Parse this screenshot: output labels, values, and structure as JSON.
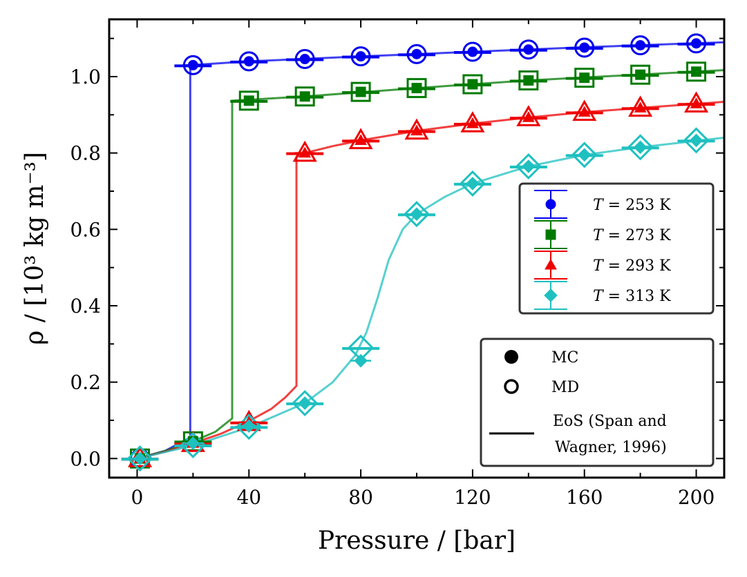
{
  "chart_data": {
    "type": "scatter",
    "xlabel": "Pressure / [bar]",
    "ylabel": "ρ / [10³ kg m⁻³]",
    "xlim": [
      -10,
      210
    ],
    "ylim": [
      -0.05,
      1.15
    ],
    "x_ticks": [
      0,
      40,
      80,
      120,
      160,
      200
    ],
    "x_tick_labels": [
      "0",
      "40",
      "80",
      "120",
      "160",
      "200"
    ],
    "y_ticks": [
      0.0,
      0.2,
      0.4,
      0.6,
      0.8,
      1.0
    ],
    "y_tick_labels": [
      "0.0",
      "0.2",
      "0.4",
      "0.6",
      "0.8",
      "1.0"
    ],
    "series": [
      {
        "name": "T = 253 K",
        "label_var": "T",
        "label_rest": " = 253 K",
        "color": "#0000ee",
        "marker": "circle",
        "x": [
          1,
          20,
          40,
          60,
          80,
          100,
          120,
          140,
          160,
          180,
          200
        ],
        "mc": [
          0.0,
          1.03,
          1.04,
          1.046,
          1.053,
          1.059,
          1.065,
          1.071,
          1.076,
          1.082,
          1.087
        ],
        "md": [
          0.0,
          1.03,
          1.04,
          1.046,
          1.053,
          1.059,
          1.065,
          1.071,
          1.076,
          1.082,
          1.087
        ],
        "eos": [
          [
            0,
            0.0
          ],
          [
            10,
            0.02
          ],
          [
            19,
            0.055
          ],
          [
            19,
            1.03
          ],
          [
            40,
            1.04
          ],
          [
            80,
            1.053
          ],
          [
            120,
            1.065
          ],
          [
            160,
            1.077
          ],
          [
            210,
            1.09
          ]
        ]
      },
      {
        "name": "T = 273 K",
        "label_var": "T",
        "label_rest": " = 273 K",
        "color": "#007a00",
        "marker": "square",
        "x": [
          1,
          20,
          40,
          60,
          80,
          100,
          120,
          140,
          160,
          180,
          200
        ],
        "mc": [
          0.0,
          0.045,
          0.937,
          0.948,
          0.96,
          0.97,
          0.98,
          0.99,
          0.997,
          1.005,
          1.013
        ],
        "md": [
          0.0,
          0.045,
          0.937,
          0.948,
          0.96,
          0.97,
          0.98,
          0.99,
          0.997,
          1.005,
          1.013
        ],
        "eos": [
          [
            0,
            0.0
          ],
          [
            10,
            0.02
          ],
          [
            20,
            0.045
          ],
          [
            28,
            0.07
          ],
          [
            34,
            0.105
          ],
          [
            34,
            0.937
          ],
          [
            60,
            0.948
          ],
          [
            100,
            0.97
          ],
          [
            140,
            0.99
          ],
          [
            210,
            1.017
          ]
        ]
      },
      {
        "name": "T = 293 K",
        "label_var": "T",
        "label_rest": " = 293 K",
        "color": "#ee0000",
        "marker": "triangle",
        "x": [
          1,
          20,
          40,
          60,
          80,
          100,
          120,
          140,
          160,
          180,
          200
        ],
        "mc": [
          0.0,
          0.04,
          0.095,
          0.8,
          0.833,
          0.858,
          0.877,
          0.893,
          0.907,
          0.918,
          0.929
        ],
        "md": [
          0.0,
          0.04,
          0.095,
          0.8,
          0.833,
          0.858,
          0.877,
          0.893,
          0.907,
          0.918,
          0.929
        ],
        "eos": [
          [
            0,
            0.0
          ],
          [
            10,
            0.018
          ],
          [
            20,
            0.04
          ],
          [
            30,
            0.065
          ],
          [
            40,
            0.098
          ],
          [
            48,
            0.13
          ],
          [
            53,
            0.16
          ],
          [
            57,
            0.19
          ],
          [
            57,
            0.79
          ],
          [
            60,
            0.8
          ],
          [
            70,
            0.818
          ],
          [
            80,
            0.833
          ],
          [
            100,
            0.858
          ],
          [
            120,
            0.877
          ],
          [
            140,
            0.893
          ],
          [
            160,
            0.907
          ],
          [
            180,
            0.918
          ],
          [
            210,
            0.934
          ]
        ]
      },
      {
        "name": "T = 313 K",
        "label_var": "T",
        "label_rest": " = 313 K",
        "color": "#1fc0c0",
        "marker": "diamond",
        "x": [
          1,
          20,
          40,
          60,
          80,
          100,
          120,
          140,
          160,
          180,
          200
        ],
        "mc": [
          0.0,
          0.04,
          0.085,
          0.145,
          0.256,
          0.64,
          0.72,
          0.765,
          0.795,
          0.815,
          0.833
        ],
        "md": [
          0.0,
          0.035,
          0.083,
          0.145,
          0.29,
          0.64,
          0.72,
          0.765,
          0.795,
          0.815,
          0.833
        ],
        "eos": [
          [
            0,
            0.0
          ],
          [
            20,
            0.034
          ],
          [
            40,
            0.082
          ],
          [
            60,
            0.145
          ],
          [
            70,
            0.2
          ],
          [
            78,
            0.27
          ],
          [
            82,
            0.33
          ],
          [
            86,
            0.42
          ],
          [
            90,
            0.52
          ],
          [
            95,
            0.6
          ],
          [
            100,
            0.64
          ],
          [
            110,
            0.685
          ],
          [
            120,
            0.72
          ],
          [
            140,
            0.765
          ],
          [
            160,
            0.795
          ],
          [
            180,
            0.815
          ],
          [
            210,
            0.84
          ]
        ]
      }
    ],
    "legend_series_placement": "center-right",
    "legend_style": {
      "placement": "lower-right",
      "entries": [
        {
          "label": "MC",
          "style": "filled-marker"
        },
        {
          "label": "MD",
          "style": "open-marker"
        },
        {
          "label_lines": [
            "EoS (Span and",
            "Wagner, 1996)"
          ],
          "style": "line"
        }
      ]
    }
  }
}
